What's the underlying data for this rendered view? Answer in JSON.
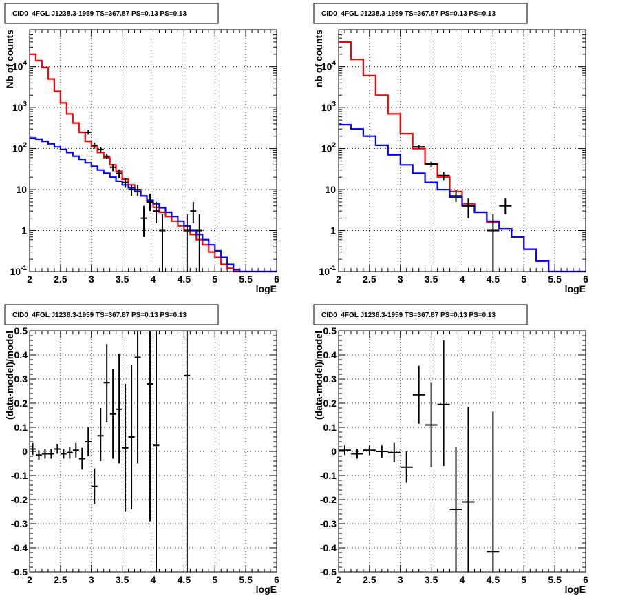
{
  "chart_data": [
    {
      "type": "line",
      "title": "CID0_4FGL J1238.3-1959 TS=367.87 PS=0.13 PS=0.13",
      "xlabel": "logE",
      "ylabel": "Nb of counts",
      "yscale": "log",
      "xlim": [
        2,
        6
      ],
      "ylim": [
        0.1,
        80000
      ],
      "xticks": [
        "2",
        "2.5",
        "3",
        "3.5",
        "4",
        "4.5",
        "5",
        "5.5",
        "6"
      ],
      "yticks": [
        "10^-1",
        "1",
        "10",
        "10^2",
        "10^3",
        "10^4"
      ],
      "grid": true,
      "series": [
        {
          "style": "hist",
          "color": "#ff0000",
          "edges": [
            2.0,
            2.1,
            2.2,
            2.3,
            2.4,
            2.5,
            2.6,
            2.7,
            2.8,
            2.9,
            3.0,
            3.1,
            3.2,
            3.3,
            3.4,
            3.5,
            3.6,
            3.7,
            3.8,
            3.9,
            4.0,
            4.1,
            4.2,
            4.3,
            4.4,
            4.5,
            4.6,
            4.7,
            4.8,
            4.9,
            5.0,
            5.1,
            5.2,
            5.3,
            5.4,
            5.5,
            5.6,
            5.7,
            5.8,
            5.9,
            6.0
          ],
          "values": [
            20000,
            14000,
            9500,
            5000,
            2500,
            1300,
            700,
            420,
            250,
            150,
            110,
            80,
            60,
            40,
            28,
            18,
            13,
            10,
            7,
            5,
            3.7,
            2.8,
            2.2,
            1.7,
            1.3,
            1.0,
            0.8,
            0.6,
            0.45,
            0.3,
            0.22,
            0.15,
            0.12,
            0.1,
            0.1,
            0.1,
            0.1,
            0.1,
            0.1,
            0.1
          ]
        },
        {
          "style": "hist",
          "color": "#0000ff",
          "edges": [
            2.0,
            2.1,
            2.2,
            2.3,
            2.4,
            2.5,
            2.6,
            2.7,
            2.8,
            2.9,
            3.0,
            3.1,
            3.2,
            3.3,
            3.4,
            3.5,
            3.6,
            3.7,
            3.8,
            3.9,
            4.0,
            4.1,
            4.2,
            4.3,
            4.4,
            4.5,
            4.6,
            4.7,
            4.8,
            4.9,
            5.0,
            5.1,
            5.2,
            5.3,
            5.4,
            5.5,
            5.6,
            5.7,
            5.8,
            5.9,
            6.0
          ],
          "values": [
            180,
            170,
            150,
            130,
            110,
            95,
            80,
            65,
            55,
            45,
            37,
            30,
            25,
            20,
            16,
            13,
            11,
            9,
            7,
            5.5,
            4.5,
            3.6,
            2.8,
            2.2,
            1.7,
            1.3,
            1.0,
            0.8,
            0.6,
            0.45,
            0.32,
            0.22,
            0.15,
            0.11,
            0.1,
            0.1,
            0.1,
            0.1,
            0.1,
            0.1
          ]
        },
        {
          "style": "points",
          "color": "#000000",
          "x": [
            2.95,
            3.05,
            3.15,
            3.25,
            3.35,
            3.45,
            3.55,
            3.65,
            3.75,
            3.85,
            3.95,
            4.05,
            4.15,
            4.55,
            4.65,
            4.75
          ],
          "xerr": 0.05,
          "y": [
            250,
            120,
            95,
            65,
            35,
            25,
            15,
            10,
            10,
            2,
            5,
            3,
            1,
            1,
            3,
            1
          ],
          "ylo": [
            220,
            100,
            80,
            55,
            28,
            19,
            11,
            7,
            7,
            0.7,
            3,
            1.5,
            0.1,
            0.1,
            1.5,
            0.1
          ],
          "yhi": [
            280,
            140,
            110,
            75,
            42,
            31,
            19,
            13,
            13,
            4,
            8,
            5,
            2.5,
            2.5,
            5,
            2.5
          ]
        }
      ]
    },
    {
      "type": "line",
      "title": "CID0_4FGL J1238.3-1959 TS=367.87 PS=0.13 PS=0.13",
      "xlabel": "logE",
      "ylabel": "nb of counts",
      "yscale": "log",
      "xlim": [
        2,
        6
      ],
      "ylim": [
        0.1,
        80000
      ],
      "xticks": [
        "2",
        "2.5",
        "3",
        "3.5",
        "4",
        "4.5",
        "5",
        "5.5",
        "6"
      ],
      "yticks": [
        "10^-1",
        "1",
        "10",
        "10^2",
        "10^3",
        "10^4"
      ],
      "grid": true,
      "series": [
        {
          "style": "hist",
          "color": "#ff0000",
          "edges": [
            2.0,
            2.2,
            2.4,
            2.6,
            2.8,
            3.0,
            3.2,
            3.4,
            3.6,
            3.8,
            4.0,
            4.2,
            4.4,
            4.6,
            4.8,
            5.0,
            5.2,
            5.4,
            5.6,
            5.8,
            6.0
          ],
          "values": [
            40000,
            15000,
            6000,
            2000,
            700,
            230,
            100,
            42,
            20,
            9,
            4.5,
            2.8,
            1.6,
            1.1,
            0.7,
            0.35,
            0.18,
            0.1,
            0.1,
            0.1
          ]
        },
        {
          "style": "hist",
          "color": "#0000ff",
          "edges": [
            2.0,
            2.2,
            2.4,
            2.6,
            2.8,
            3.0,
            3.2,
            3.4,
            3.6,
            3.8,
            4.0,
            4.2,
            4.4,
            4.6,
            4.8,
            5.0,
            5.2,
            5.4,
            5.6,
            5.8,
            6.0
          ],
          "values": [
            380,
            300,
            200,
            120,
            70,
            40,
            25,
            15,
            10,
            6.5,
            4.0,
            2.8,
            1.7,
            1.1,
            0.7,
            0.35,
            0.18,
            0.1,
            0.1,
            0.1
          ]
        },
        {
          "style": "points",
          "color": "#000000",
          "x": [
            3.3,
            3.5,
            3.7,
            3.9,
            4.1,
            4.5,
            4.7
          ],
          "xerr": 0.1,
          "y": [
            110,
            42,
            22,
            7,
            4,
            1,
            4
          ],
          "ylo": [
            100,
            36,
            17,
            5,
            2,
            0.1,
            2.5
          ],
          "yhi": [
            120,
            48,
            27,
            10,
            6,
            2.5,
            6
          ]
        }
      ]
    },
    {
      "type": "scatter",
      "title": "CID0_4FGL J1238.3-1959 TS=367.87 PS=0.13 PS=0.13",
      "xlabel": "logE",
      "ylabel": "(data-model)/model",
      "yscale": "linear",
      "xlim": [
        2,
        6
      ],
      "ylim": [
        -0.5,
        0.5
      ],
      "xticks": [
        "2",
        "2.5",
        "3",
        "3.5",
        "4",
        "4.5",
        "5",
        "5.5",
        "6"
      ],
      "yticks": [
        "-0.5",
        "-0.4",
        "-0.3",
        "-0.2",
        "-0.1",
        "0",
        "0.1",
        "0.2",
        "0.3",
        "0.4",
        "0.5"
      ],
      "grid": true,
      "series": [
        {
          "style": "points",
          "color": "#000000",
          "x": [
            2.05,
            2.15,
            2.25,
            2.35,
            2.45,
            2.55,
            2.65,
            2.75,
            2.85,
            2.95,
            3.05,
            3.15,
            3.25,
            3.35,
            3.45,
            3.55,
            3.65,
            3.75,
            3.95,
            4.05,
            4.55
          ],
          "xerr": 0.05,
          "y": [
            0.01,
            -0.015,
            -0.01,
            -0.01,
            0.01,
            -0.01,
            -0.005,
            0.005,
            -0.03,
            0.04,
            -0.145,
            0.065,
            0.285,
            0.155,
            0.175,
            0.015,
            0.06,
            0.39,
            0.28,
            0.025,
            0.315
          ],
          "ylo": [
            -0.015,
            -0.035,
            -0.03,
            -0.03,
            -0.01,
            -0.03,
            -0.03,
            -0.025,
            -0.075,
            -0.02,
            -0.22,
            -0.04,
            0.12,
            -0.03,
            -0.05,
            -0.25,
            -0.24,
            -0.05,
            -0.29,
            -0.5,
            -0.5
          ],
          "yhi": [
            0.035,
            0.005,
            0.01,
            0.01,
            0.03,
            0.01,
            0.02,
            0.035,
            0.015,
            0.1,
            -0.07,
            0.18,
            0.445,
            0.34,
            0.405,
            0.28,
            0.36,
            0.5,
            0.5,
            0.5,
            0.5
          ]
        }
      ]
    },
    {
      "type": "scatter",
      "title": "CID0_4FGL J1238.3-1959 TS=367.87 PS=0.13 PS=0.13",
      "xlabel": "logE",
      "ylabel": "(data-model)/model",
      "yscale": "linear",
      "xlim": [
        2,
        6
      ],
      "ylim": [
        -0.5,
        0.5
      ],
      "xticks": [
        "2",
        "2.5",
        "3",
        "3.5",
        "4",
        "4.5",
        "5",
        "5.5",
        "6"
      ],
      "yticks": [
        "-0.5",
        "-0.4",
        "-0.3",
        "-0.2",
        "-0.1",
        "0",
        "0.1",
        "0.2",
        "0.3",
        "0.4",
        "0.5"
      ],
      "grid": true,
      "series": [
        {
          "style": "points",
          "color": "#000000",
          "x": [
            2.1,
            2.3,
            2.5,
            2.7,
            2.9,
            3.1,
            3.3,
            3.5,
            3.7,
            3.9,
            4.1,
            4.5
          ],
          "xerr": 0.1,
          "y": [
            0.005,
            -0.01,
            0.005,
            0.0,
            -0.005,
            -0.065,
            0.235,
            0.11,
            0.195,
            -0.24,
            -0.21,
            -0.415
          ],
          "ylo": [
            -0.015,
            -0.03,
            -0.015,
            -0.025,
            -0.045,
            -0.13,
            0.115,
            -0.065,
            -0.06,
            -0.5,
            -0.5,
            -0.5
          ],
          "yhi": [
            0.025,
            0.01,
            0.025,
            0.025,
            0.035,
            0.0,
            0.355,
            0.285,
            0.46,
            0.02,
            0.185,
            0.165
          ]
        }
      ]
    }
  ]
}
